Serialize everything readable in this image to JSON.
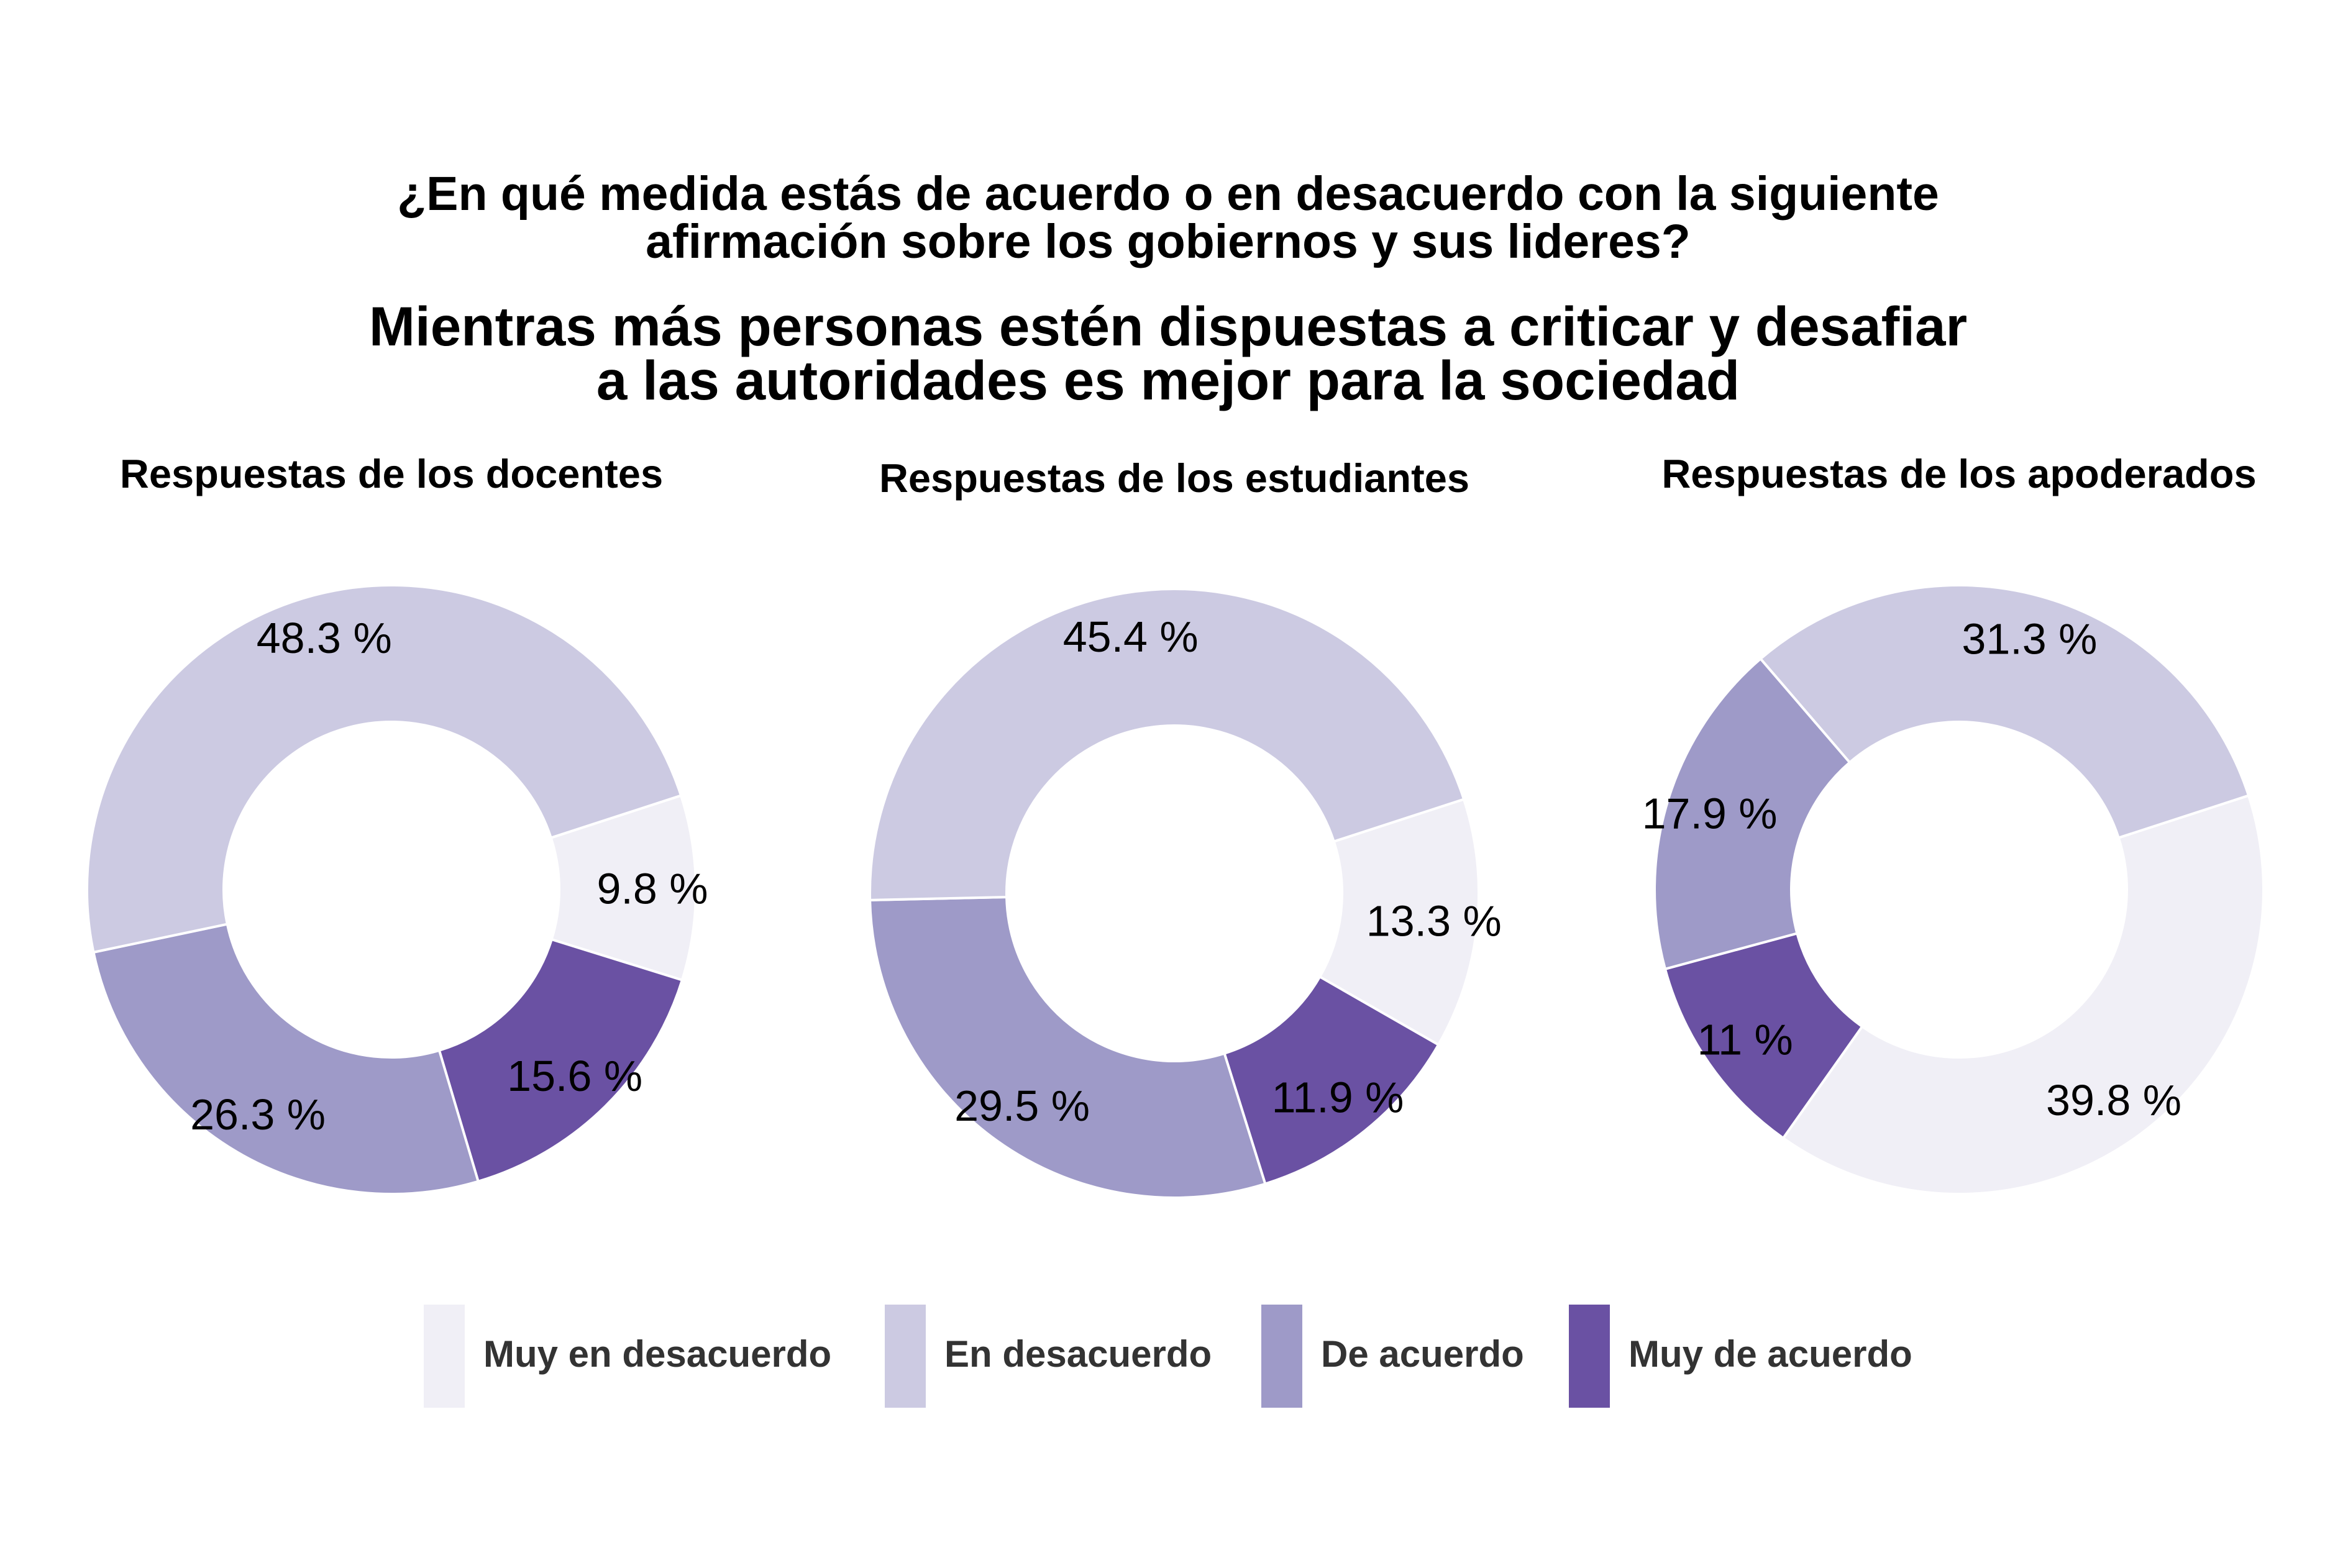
{
  "chart_data": [
    {
      "type": "pie",
      "title": "Respuestas de los docentes",
      "categories": [
        "Muy en desacuerdo",
        "Muy de acuerdo",
        "De acuerdo",
        "En desacuerdo"
      ],
      "values": [
        9.8,
        15.6,
        26.3,
        48.3
      ],
      "labels": [
        "9.8 %",
        "15.6 %",
        "26.3 %",
        "48.3 %"
      ]
    },
    {
      "type": "pie",
      "title": "Respuestas de los estudiantes",
      "categories": [
        "Muy en desacuerdo",
        "Muy de acuerdo",
        "De acuerdo",
        "En desacuerdo"
      ],
      "values": [
        13.3,
        11.9,
        29.5,
        45.4
      ],
      "labels": [
        "13.3 %",
        "11.9 %",
        "29.5 %",
        "45.4 %"
      ]
    },
    {
      "type": "pie",
      "title": "Respuestas de los apoderados",
      "categories": [
        "Muy en desacuerdo",
        "Muy de acuerdo",
        "De acuerdo",
        "En desacuerdo"
      ],
      "values": [
        39.8,
        11,
        17.9,
        31.3
      ],
      "labels": [
        "39.8 %",
        "11 %",
        "17.9 %",
        "31.3 %"
      ]
    }
  ],
  "title_lines": [
    "¿En qué medida estás de acuerdo o en desacuerdo con la siguiente",
    "afirmación sobre los gobiernos y sus lideres?"
  ],
  "subtitle_lines": [
    "Mientras más personas estén dispuestas a criticar y desafiar",
    "a las autoridades es mejor para la sociedad"
  ],
  "legend": {
    "placement": "bottom",
    "items": [
      {
        "label": "Muy en desacuerdo",
        "color": "#f0eff6"
      },
      {
        "label": "En desacuerdo",
        "color": "#cccae2"
      },
      {
        "label": "De acuerdo",
        "color": "#9e9ac8"
      },
      {
        "label": "Muy de acuerdo",
        "color": "#6a51a3"
      }
    ]
  },
  "colors": {
    "Muy en desacuerdo": "#f0eff6",
    "En desacuerdo": "#cccae2",
    "De acuerdo": "#9e9ac8",
    "Muy de acuerdo": "#6a51a3"
  }
}
